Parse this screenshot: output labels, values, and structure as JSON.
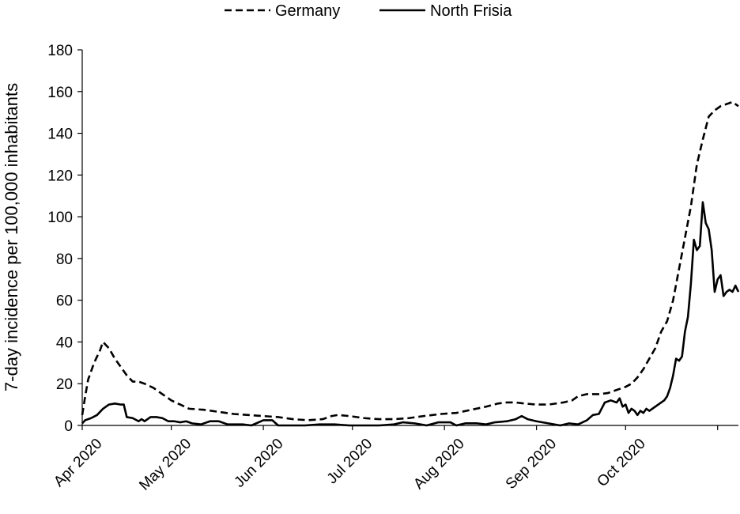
{
  "chart_data": {
    "type": "line",
    "title": "",
    "xlabel": "",
    "ylabel": "7-day incidence per 100,000 inhabitants",
    "ylim": [
      0,
      180
    ],
    "y_ticks": [
      "0",
      "20",
      "40",
      "60",
      "80",
      "100",
      "120",
      "140",
      "160",
      "180"
    ],
    "x_ticks": [
      "Apr 2020",
      "May 2020",
      "Jun 2020",
      "Jul 2020",
      "Aug 2020",
      "Sep 2020",
      "Oct 2020"
    ],
    "x_range": [
      "2020-04-01",
      "2020-10-31"
    ],
    "grid": false,
    "legend_position": "top",
    "series": [
      {
        "name": "Germany",
        "style": "dashed",
        "color": "#000000",
        "points": [
          [
            "2020-04-01",
            5
          ],
          [
            "2020-04-02",
            14
          ],
          [
            "2020-04-03",
            22
          ],
          [
            "2020-04-05",
            30
          ],
          [
            "2020-04-07",
            36
          ],
          [
            "2020-04-08",
            40
          ],
          [
            "2020-04-10",
            37
          ],
          [
            "2020-04-12",
            32
          ],
          [
            "2020-04-14",
            28
          ],
          [
            "2020-04-16",
            24
          ],
          [
            "2020-04-18",
            21
          ],
          [
            "2020-04-20",
            21
          ],
          [
            "2020-04-22",
            20
          ],
          [
            "2020-04-25",
            18
          ],
          [
            "2020-04-28",
            15
          ],
          [
            "2020-05-01",
            12
          ],
          [
            "2020-05-04",
            10
          ],
          [
            "2020-05-07",
            8
          ],
          [
            "2020-05-12",
            7.5
          ],
          [
            "2020-05-17",
            6.5
          ],
          [
            "2020-05-22",
            5.5
          ],
          [
            "2020-05-27",
            5
          ],
          [
            "2020-06-01",
            4.5
          ],
          [
            "2020-06-06",
            4
          ],
          [
            "2020-06-11",
            3
          ],
          [
            "2020-06-16",
            2.5
          ],
          [
            "2020-06-21",
            3
          ],
          [
            "2020-06-24",
            4.5
          ],
          [
            "2020-06-26",
            5
          ],
          [
            "2020-06-30",
            4.5
          ],
          [
            "2020-07-05",
            3.5
          ],
          [
            "2020-07-10",
            3
          ],
          [
            "2020-07-15",
            3
          ],
          [
            "2020-07-20",
            3.5
          ],
          [
            "2020-07-25",
            4.5
          ],
          [
            "2020-07-31",
            5.5
          ],
          [
            "2020-08-05",
            6
          ],
          [
            "2020-08-10",
            7.5
          ],
          [
            "2020-08-15",
            9
          ],
          [
            "2020-08-19",
            10.5
          ],
          [
            "2020-08-22",
            11
          ],
          [
            "2020-08-25",
            11
          ],
          [
            "2020-08-28",
            10.5
          ],
          [
            "2020-09-01",
            10
          ],
          [
            "2020-09-05",
            10
          ],
          [
            "2020-09-10",
            11
          ],
          [
            "2020-09-13",
            12
          ],
          [
            "2020-09-15",
            14
          ],
          [
            "2020-09-18",
            15
          ],
          [
            "2020-09-22",
            15
          ],
          [
            "2020-09-25",
            15.5
          ],
          [
            "2020-09-28",
            17
          ],
          [
            "2020-10-01",
            18.5
          ],
          [
            "2020-10-03",
            20
          ],
          [
            "2020-10-05",
            23
          ],
          [
            "2020-10-07",
            27
          ],
          [
            "2020-10-09",
            32
          ],
          [
            "2020-10-11",
            37
          ],
          [
            "2020-10-13",
            45
          ],
          [
            "2020-10-15",
            50
          ],
          [
            "2020-10-17",
            60
          ],
          [
            "2020-10-19",
            75
          ],
          [
            "2020-10-21",
            90
          ],
          [
            "2020-10-23",
            105
          ],
          [
            "2020-10-25",
            125
          ],
          [
            "2020-10-27",
            137
          ],
          [
            "2020-10-29",
            148
          ],
          [
            "2020-10-31",
            151
          ],
          [
            "2020-11-02",
            153
          ],
          [
            "2020-11-04",
            154
          ],
          [
            "2020-11-06",
            155
          ],
          [
            "2020-11-08",
            153
          ]
        ]
      },
      {
        "name": "North Frisia",
        "style": "solid",
        "color": "#000000",
        "points": [
          [
            "2020-04-01",
            1
          ],
          [
            "2020-04-02",
            2.5
          ],
          [
            "2020-04-04",
            3.5
          ],
          [
            "2020-04-06",
            5
          ],
          [
            "2020-04-08",
            8
          ],
          [
            "2020-04-10",
            10
          ],
          [
            "2020-04-12",
            10.5
          ],
          [
            "2020-04-14",
            10
          ],
          [
            "2020-04-15",
            10
          ],
          [
            "2020-04-16",
            4
          ],
          [
            "2020-04-18",
            3.5
          ],
          [
            "2020-04-20",
            2
          ],
          [
            "2020-04-21",
            3
          ],
          [
            "2020-04-22",
            2
          ],
          [
            "2020-04-24",
            4
          ],
          [
            "2020-04-26",
            4
          ],
          [
            "2020-04-28",
            3.5
          ],
          [
            "2020-04-30",
            2
          ],
          [
            "2020-05-02",
            2
          ],
          [
            "2020-05-04",
            1.5
          ],
          [
            "2020-05-06",
            2
          ],
          [
            "2020-05-08",
            1
          ],
          [
            "2020-05-11",
            0.5
          ],
          [
            "2020-05-14",
            2
          ],
          [
            "2020-05-17",
            2
          ],
          [
            "2020-05-20",
            0.5
          ],
          [
            "2020-05-25",
            0.5
          ],
          [
            "2020-05-28",
            0
          ],
          [
            "2020-06-01",
            2.5
          ],
          [
            "2020-06-04",
            2.5
          ],
          [
            "2020-06-06",
            0
          ],
          [
            "2020-06-15",
            0
          ],
          [
            "2020-06-20",
            0.5
          ],
          [
            "2020-06-25",
            0.5
          ],
          [
            "2020-06-30",
            0
          ],
          [
            "2020-07-10",
            0
          ],
          [
            "2020-07-15",
            0.5
          ],
          [
            "2020-07-18",
            1.5
          ],
          [
            "2020-07-22",
            1
          ],
          [
            "2020-07-26",
            0
          ],
          [
            "2020-07-30",
            1.5
          ],
          [
            "2020-08-03",
            1.5
          ],
          [
            "2020-08-05",
            0
          ],
          [
            "2020-08-08",
            1
          ],
          [
            "2020-08-12",
            1
          ],
          [
            "2020-08-15",
            0.5
          ],
          [
            "2020-08-18",
            1.5
          ],
          [
            "2020-08-22",
            2
          ],
          [
            "2020-08-25",
            3
          ],
          [
            "2020-08-27",
            4.5
          ],
          [
            "2020-08-29",
            3
          ],
          [
            "2020-09-01",
            2
          ],
          [
            "2020-09-05",
            1
          ],
          [
            "2020-09-09",
            0
          ],
          [
            "2020-09-12",
            1
          ],
          [
            "2020-09-15",
            0.5
          ],
          [
            "2020-09-18",
            2.5
          ],
          [
            "2020-09-20",
            5
          ],
          [
            "2020-09-22",
            5.5
          ],
          [
            "2020-09-24",
            11
          ],
          [
            "2020-09-26",
            12
          ],
          [
            "2020-09-28",
            11
          ],
          [
            "2020-09-29",
            13
          ],
          [
            "2020-09-30",
            9
          ],
          [
            "2020-10-01",
            10
          ],
          [
            "2020-10-02",
            6
          ],
          [
            "2020-10-03",
            8
          ],
          [
            "2020-10-04",
            7
          ],
          [
            "2020-10-05",
            5
          ],
          [
            "2020-10-06",
            7
          ],
          [
            "2020-10-07",
            6
          ],
          [
            "2020-10-08",
            8
          ],
          [
            "2020-10-09",
            7
          ],
          [
            "2020-10-11",
            9
          ],
          [
            "2020-10-13",
            11
          ],
          [
            "2020-10-14",
            12
          ],
          [
            "2020-10-15",
            14
          ],
          [
            "2020-10-16",
            18
          ],
          [
            "2020-10-17",
            24
          ],
          [
            "2020-10-18",
            32
          ],
          [
            "2020-10-19",
            31
          ],
          [
            "2020-10-20",
            33
          ],
          [
            "2020-10-21",
            45
          ],
          [
            "2020-10-22",
            52
          ],
          [
            "2020-10-23",
            68
          ],
          [
            "2020-10-24",
            89
          ],
          [
            "2020-10-25",
            84
          ],
          [
            "2020-10-26",
            86
          ],
          [
            "2020-10-27",
            107
          ],
          [
            "2020-10-28",
            97
          ],
          [
            "2020-10-29",
            94
          ],
          [
            "2020-10-30",
            84
          ],
          [
            "2020-10-31",
            64
          ],
          [
            "2020-11-01",
            70
          ],
          [
            "2020-11-02",
            72
          ],
          [
            "2020-11-03",
            62
          ],
          [
            "2020-11-04",
            64
          ],
          [
            "2020-11-05",
            65
          ],
          [
            "2020-11-06",
            64
          ],
          [
            "2020-11-07",
            67
          ],
          [
            "2020-11-08",
            64
          ]
        ]
      }
    ]
  }
}
